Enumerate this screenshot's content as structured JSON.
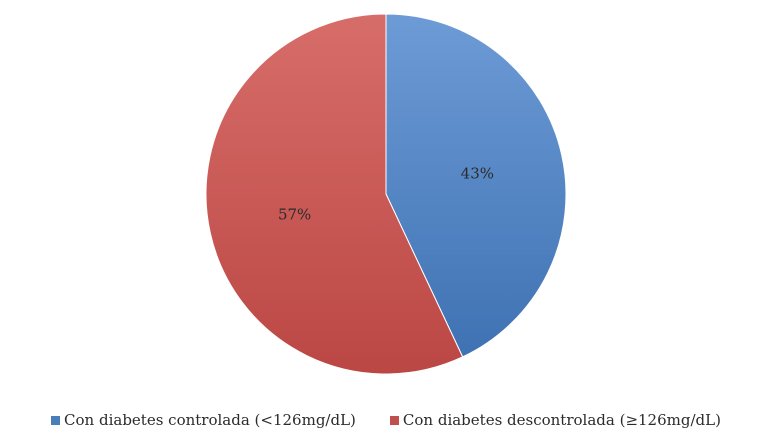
{
  "chart_data": {
    "type": "pie",
    "categories": [
      "Con diabetes controlada (<126mg/dL)",
      "Con diabetes descontrolada (≥126mg/dL)"
    ],
    "values": [
      43,
      57
    ],
    "data_labels": [
      "43%",
      "57%"
    ],
    "colors": [
      "#4a7ebb",
      "#c0504d"
    ],
    "title": "",
    "legend_position": "bottom",
    "start_angle_deg": 0,
    "direction": "clockwise"
  },
  "legend": {
    "items": [
      {
        "label": "Con diabetes controlada (<126mg/dL)",
        "color": "#4a7ebb"
      },
      {
        "label": "Con diabetes descontrolada (≥126mg/dL)",
        "color": "#c0504d"
      }
    ]
  }
}
